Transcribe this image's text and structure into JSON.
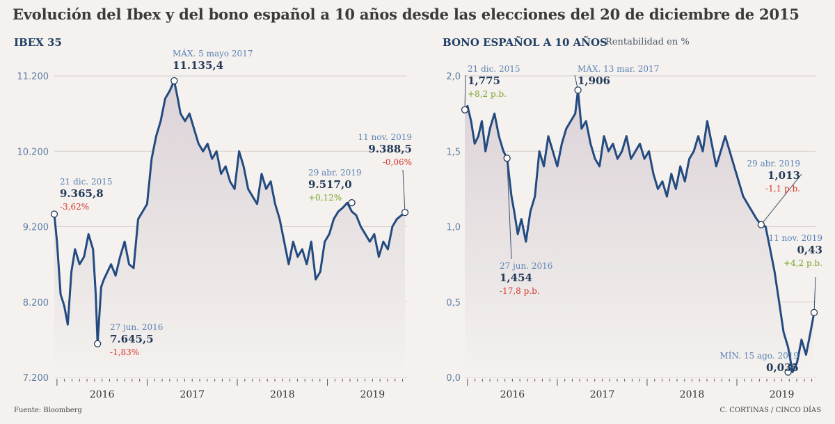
{
  "title": "Evolución del Ibex y del bono español a 10 años desde las elecciones del 20 de diciembre de 2015",
  "footer": {
    "source": "Fuente: Bloomberg",
    "credit": "C. CORTINAS / CINCO DÍAS"
  },
  "colors": {
    "line": "#234b80",
    "grid": "#d8cfcd",
    "neg": "#d9342b",
    "pos": "#7aa32a",
    "label": "#5a83b6"
  },
  "chart_data": [
    {
      "type": "line",
      "title": "IBEX 35",
      "subtitle": "",
      "x_range": [
        2015.97,
        2019.86
      ],
      "ylim": [
        7200,
        11200
      ],
      "yticks": [
        7200,
        8200,
        9200,
        10200,
        11200
      ],
      "ytick_labels": [
        "7.200",
        "8.200",
        "9.200",
        "10.200",
        "11.200"
      ],
      "xtick_labels": [
        "2016",
        "2017",
        "2018",
        "2019"
      ],
      "xtick_values": [
        2016.5,
        2017.5,
        2018.5,
        2019.5
      ],
      "series": [
        {
          "name": "IBEX 35",
          "x": [
            2015.97,
            2016.0,
            2016.04,
            2016.08,
            2016.12,
            2016.16,
            2016.2,
            2016.25,
            2016.3,
            2016.35,
            2016.4,
            2016.43,
            2016.45,
            2016.49,
            2016.52,
            2016.56,
            2016.6,
            2016.65,
            2016.7,
            2016.75,
            2016.8,
            2016.85,
            2016.9,
            2016.95,
            2017.0,
            2017.05,
            2017.1,
            2017.15,
            2017.2,
            2017.25,
            2017.3,
            2017.34,
            2017.37,
            2017.42,
            2017.47,
            2017.52,
            2017.57,
            2017.62,
            2017.67,
            2017.72,
            2017.77,
            2017.82,
            2017.87,
            2017.92,
            2017.97,
            2018.02,
            2018.07,
            2018.12,
            2018.17,
            2018.22,
            2018.27,
            2018.32,
            2018.37,
            2018.42,
            2018.47,
            2018.52,
            2018.57,
            2018.62,
            2018.67,
            2018.72,
            2018.77,
            2018.82,
            2018.87,
            2018.92,
            2018.97,
            2019.02,
            2019.07,
            2019.12,
            2019.17,
            2019.22,
            2019.27,
            2019.32,
            2019.37,
            2019.42,
            2019.47,
            2019.52,
            2019.57,
            2019.62,
            2019.67,
            2019.72,
            2019.77,
            2019.86
          ],
          "values": [
            9365.8,
            9000,
            8300,
            8150,
            7900,
            8600,
            8900,
            8700,
            8800,
            9100,
            8900,
            8300,
            7645.5,
            8400,
            8500,
            8600,
            8700,
            8550,
            8800,
            9000,
            8700,
            8650,
            9300,
            9400,
            9500,
            10100,
            10400,
            10600,
            10900,
            11000,
            11135.4,
            10900,
            10700,
            10600,
            10700,
            10500,
            10300,
            10200,
            10300,
            10100,
            10200,
            9900,
            10000,
            9800,
            9700,
            10200,
            10000,
            9700,
            9600,
            9500,
            9900,
            9700,
            9800,
            9500,
            9300,
            9000,
            8700,
            9000,
            8800,
            8900,
            8700,
            9000,
            8500,
            8600,
            9000,
            9100,
            9300,
            9400,
            9450,
            9517,
            9400,
            9350,
            9200,
            9100,
            9000,
            9100,
            8800,
            9000,
            8900,
            9200,
            9300,
            9388.5
          ]
        }
      ],
      "annotations": [
        {
          "date": "21 dic. 2015",
          "value": "9.365,8",
          "change": "-3,62%",
          "change_sign": "neg",
          "x": 2015.97,
          "y": 9365.8
        },
        {
          "date": "27 jun. 2016",
          "value": "7.645,5",
          "change": "-1,83%",
          "change_sign": "neg",
          "x": 2016.45,
          "y": 7645.5
        },
        {
          "date": "MÁX. 5 mayo 2017",
          "value": "11.135,4",
          "change": "",
          "change_sign": "",
          "x": 2017.3,
          "y": 11135.4
        },
        {
          "date": "29 abr. 2019",
          "value": "9.517,0",
          "change": "+0,12%",
          "change_sign": "pos",
          "x": 2019.27,
          "y": 9517
        },
        {
          "date": "11 nov. 2019",
          "value": "9.388,5",
          "change": "-0,06%",
          "change_sign": "neg",
          "x": 2019.86,
          "y": 9388.5
        }
      ]
    },
    {
      "type": "line",
      "title": "BONO ESPAÑOL A 10 AÑOS",
      "subtitle": "Rentabilidad en %",
      "x_range": [
        2015.97,
        2019.86
      ],
      "ylim": [
        0,
        2.0
      ],
      "yticks": [
        0,
        0.5,
        1.0,
        1.5,
        2.0
      ],
      "ytick_labels": [
        "0,0",
        "0,5",
        "1,0",
        "1,5",
        "2,0"
      ],
      "xtick_labels": [
        "2016",
        "2017",
        "2018",
        "2019"
      ],
      "xtick_values": [
        2016.5,
        2017.5,
        2018.5,
        2019.5
      ],
      "series": [
        {
          "name": "Bono 10 años",
          "x": [
            2015.97,
            2016.0,
            2016.04,
            2016.08,
            2016.12,
            2016.16,
            2016.2,
            2016.25,
            2016.3,
            2016.35,
            2016.4,
            2016.44,
            2016.49,
            2016.52,
            2016.56,
            2016.6,
            2016.65,
            2016.7,
            2016.75,
            2016.8,
            2016.85,
            2016.9,
            2016.95,
            2017.0,
            2017.05,
            2017.1,
            2017.15,
            2017.2,
            2017.23,
            2017.27,
            2017.32,
            2017.37,
            2017.42,
            2017.47,
            2017.52,
            2017.57,
            2017.62,
            2017.67,
            2017.72,
            2017.77,
            2017.82,
            2017.87,
            2017.92,
            2017.97,
            2018.02,
            2018.07,
            2018.12,
            2018.17,
            2018.22,
            2018.27,
            2018.32,
            2018.37,
            2018.42,
            2018.47,
            2018.52,
            2018.57,
            2018.62,
            2018.67,
            2018.72,
            2018.77,
            2018.82,
            2018.87,
            2018.92,
            2018.97,
            2019.02,
            2019.07,
            2019.12,
            2019.17,
            2019.22,
            2019.27,
            2019.32,
            2019.37,
            2019.42,
            2019.47,
            2019.52,
            2019.57,
            2019.62,
            2019.67,
            2019.72,
            2019.77,
            2019.82,
            2019.86
          ],
          "values": [
            1.775,
            1.8,
            1.7,
            1.55,
            1.6,
            1.7,
            1.5,
            1.65,
            1.75,
            1.6,
            1.5,
            1.454,
            1.2,
            1.1,
            0.95,
            1.05,
            0.9,
            1.1,
            1.2,
            1.5,
            1.4,
            1.6,
            1.5,
            1.4,
            1.55,
            1.65,
            1.7,
            1.75,
            1.906,
            1.65,
            1.7,
            1.55,
            1.45,
            1.4,
            1.6,
            1.5,
            1.55,
            1.45,
            1.5,
            1.6,
            1.45,
            1.5,
            1.55,
            1.45,
            1.5,
            1.35,
            1.25,
            1.3,
            1.2,
            1.35,
            1.25,
            1.4,
            1.3,
            1.45,
            1.5,
            1.6,
            1.5,
            1.7,
            1.55,
            1.4,
            1.5,
            1.6,
            1.5,
            1.4,
            1.3,
            1.2,
            1.15,
            1.1,
            1.05,
            1.013,
            1.0,
            0.85,
            0.7,
            0.5,
            0.3,
            0.2,
            0.035,
            0.1,
            0.25,
            0.15,
            0.3,
            0.43
          ]
        }
      ],
      "annotations": [
        {
          "date": "21 dic. 2015",
          "value": "1,775",
          "change": "+8,2 p.b.",
          "change_sign": "pos",
          "x": 2015.97,
          "y": 1.775
        },
        {
          "date": "27 jun. 2016",
          "value": "1,454",
          "change": "-17,8 p.b.",
          "change_sign": "neg",
          "x": 2016.44,
          "y": 1.454
        },
        {
          "date": "MÁX. 13 mar. 2017",
          "value": "1,906",
          "change": "",
          "change_sign": "",
          "x": 2017.23,
          "y": 1.906
        },
        {
          "date": "29 abr. 2019",
          "value": "1,013",
          "change": "-1,1 p.b.",
          "change_sign": "neg",
          "x": 2019.27,
          "y": 1.013
        },
        {
          "date": "MÍN. 15 ago. 2019",
          "value": "0,035",
          "change": "",
          "change_sign": "",
          "x": 2019.57,
          "y": 0.035
        },
        {
          "date": "11 nov. 2019",
          "value": "0,43",
          "change": "+4,2 p.b.",
          "change_sign": "pos",
          "x": 2019.86,
          "y": 0.43
        }
      ]
    }
  ]
}
